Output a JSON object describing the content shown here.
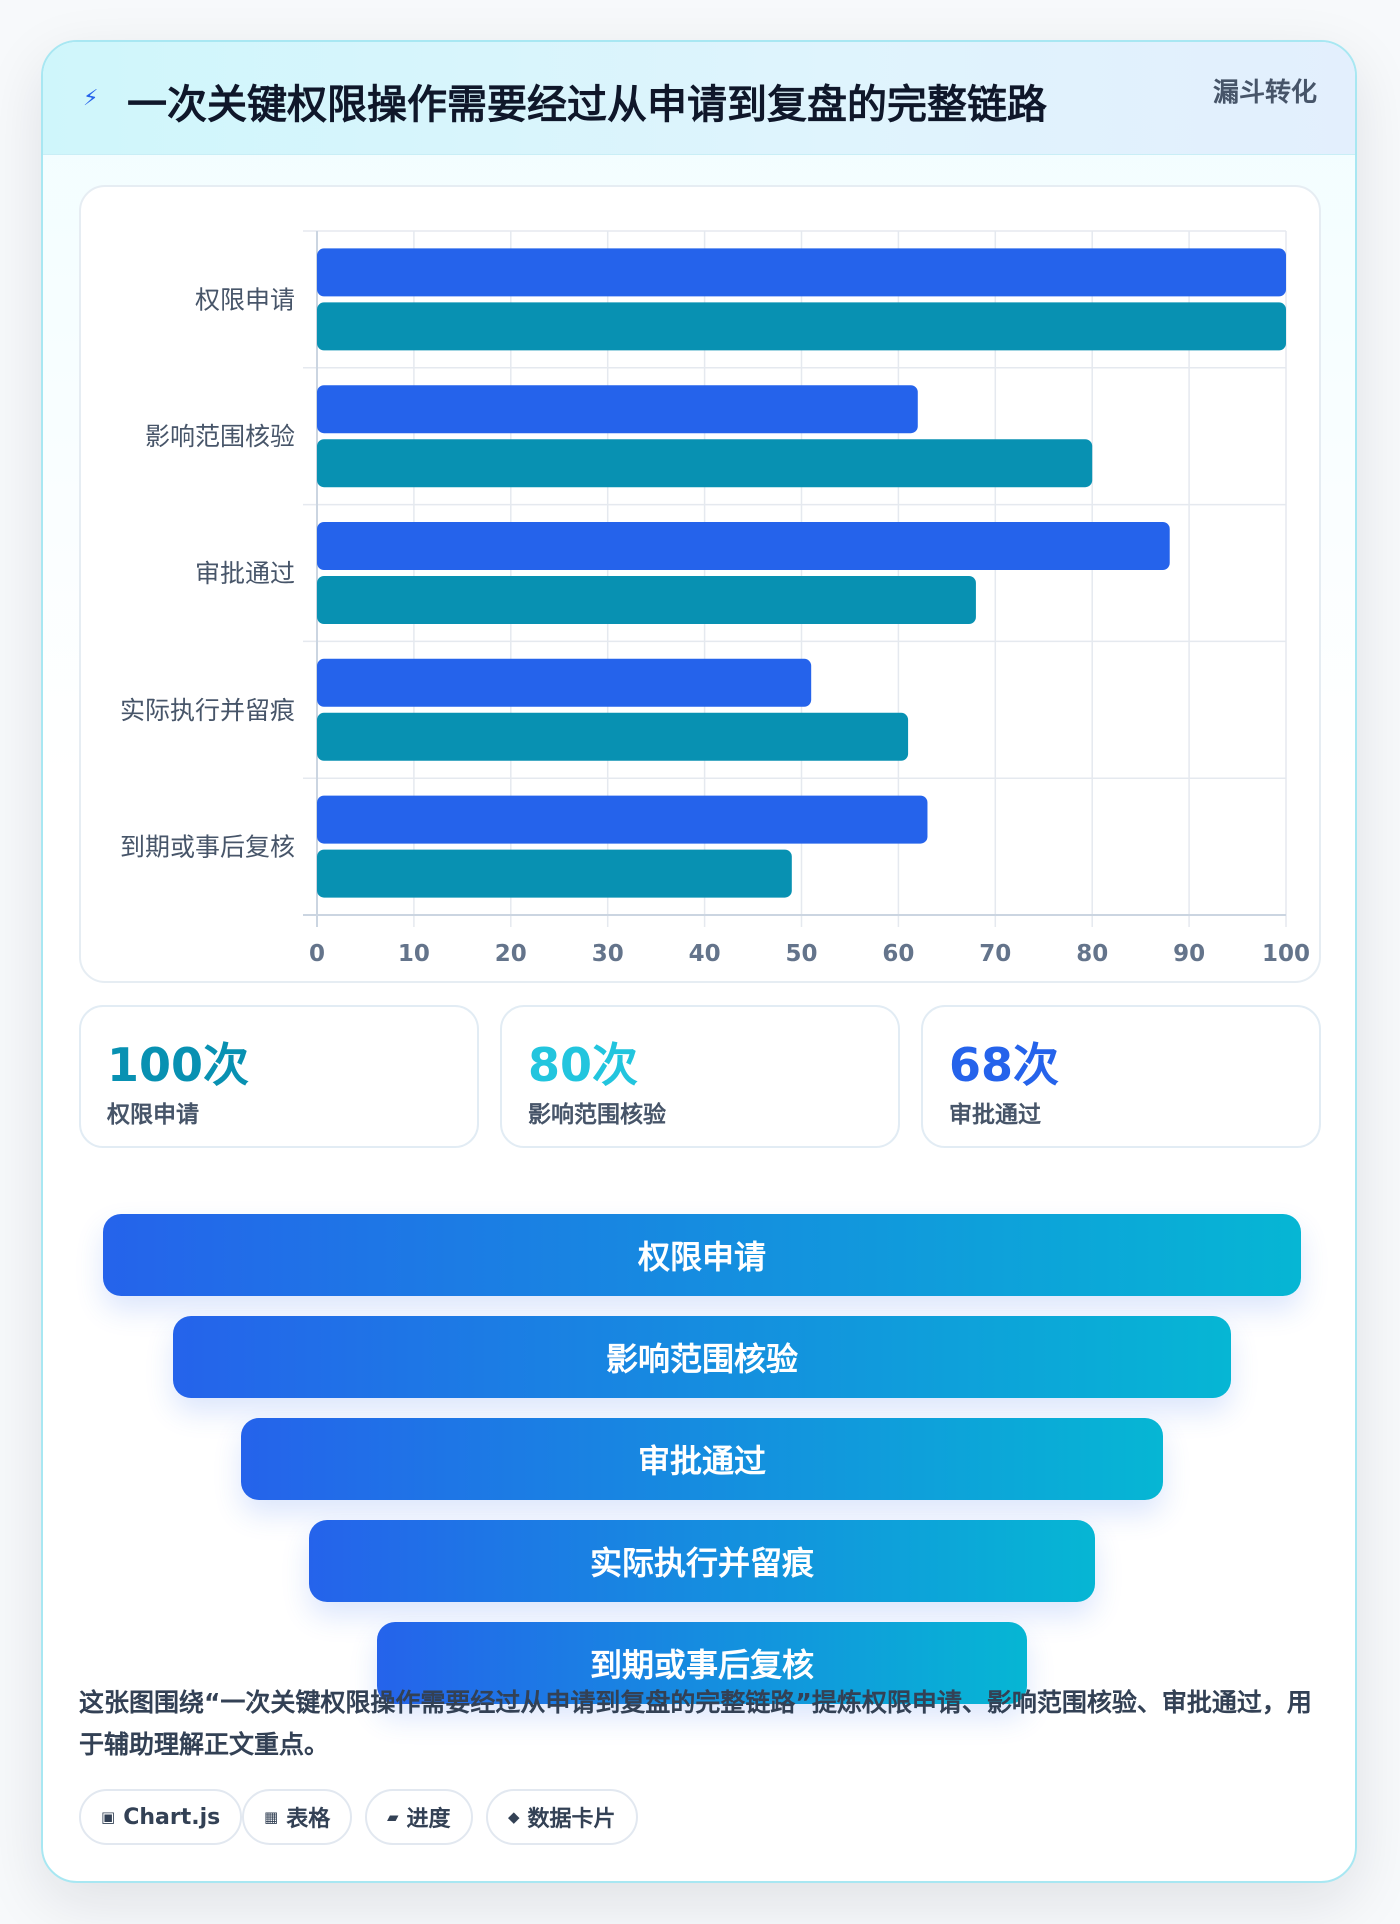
{
  "header": {
    "icon": "lightning-icon",
    "title": "一次关键权限操作需要经过从申请到复盘的完整链路",
    "badge": "漏斗转化"
  },
  "colors": {
    "series_a": "#2563eb",
    "series_b": "#0891b2",
    "stat_1": "#0891b2",
    "stat_2": "#22c5de",
    "stat_3": "#2563eb"
  },
  "chart_data": {
    "type": "bar",
    "orientation": "horizontal",
    "categories": [
      "权限申请",
      "影响范围核验",
      "审批通过",
      "实际执行并留痕",
      "到期或事后复核"
    ],
    "series": [
      {
        "values": [
          100,
          62,
          88,
          51,
          63
        ]
      },
      {
        "values": [
          100,
          80,
          68,
          61,
          49
        ]
      }
    ],
    "xlim": [
      0,
      100
    ],
    "xticks": [
      0,
      10,
      20,
      30,
      40,
      50,
      60,
      70,
      80,
      90,
      100
    ],
    "grid": true,
    "legend": "none"
  },
  "stats": [
    {
      "value": "100次",
      "label": "权限申请"
    },
    {
      "value": "80次",
      "label": "影响范围核验"
    },
    {
      "value": "68次",
      "label": "审批通过"
    }
  ],
  "funnel": [
    {
      "label": "权限申请"
    },
    {
      "label": "影响范围核验"
    },
    {
      "label": "审批通过"
    },
    {
      "label": "实际执行并留痕"
    },
    {
      "label": "到期或事后复核"
    }
  ],
  "description": "这张图围绕“一次关键权限操作需要经过从申请到复盘的完整链路”提炼权限申请、影响范围核验、审批通过，用于辅助理解正文重点。",
  "tags": [
    {
      "icon": "▣",
      "label": "Chart.js"
    },
    {
      "icon": "▦",
      "label": "表格"
    },
    {
      "icon": "▰",
      "label": "进度"
    },
    {
      "icon": "◆",
      "label": "数据卡片"
    }
  ]
}
